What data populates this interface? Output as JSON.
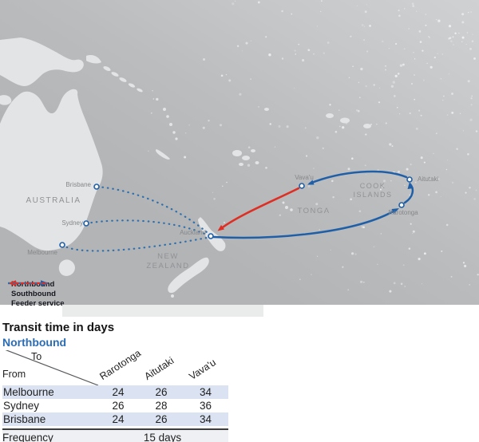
{
  "colors": {
    "northbound_blue": "#1f5fa8",
    "southbound_red": "#df2e23",
    "feeder_blue": "#2f6fad",
    "row_highlight": "#dbe3f2",
    "frequency_bg": "#eef0f3",
    "heading_blue": "#2b6cb3",
    "ocean_gray": "#b4b6b8",
    "land_gray": "#e3e4e5"
  },
  "map": {
    "countries": {
      "australia": "AUSTRALIA",
      "new_zealand_line1": "NEW",
      "new_zealand_line2": "ZEALAND",
      "cook_islands_line1": "COOK",
      "cook_islands_line2": "ISLANDS",
      "tonga": "TONGA"
    },
    "cities": {
      "brisbane": "Brisbane",
      "sydney": "Sydney",
      "melbourne": "Melbourne",
      "auckland": "Auckland",
      "vavau": "Vava'u",
      "aitutaki": "Aitutaki",
      "rarotonga": "Rarotonga"
    },
    "legend": {
      "northbound": "Northbound",
      "southbound": "Southbound",
      "feeder": "Feeder service"
    }
  },
  "transit": {
    "title": "Transit time in days",
    "direction": "Northbound",
    "axis": {
      "to": "To",
      "from": "From"
    },
    "columns": [
      "Rarotonga",
      "Aitutaki",
      "Vava'u"
    ],
    "rows": [
      {
        "from": "Melbourne",
        "values": [
          "24",
          "26",
          "34"
        ]
      },
      {
        "from": "Sydney",
        "values": [
          "26",
          "28",
          "36"
        ]
      },
      {
        "from": "Brisbane",
        "values": [
          "24",
          "26",
          "34"
        ]
      }
    ],
    "frequency": {
      "label": "Frequency",
      "value": "15 days"
    }
  }
}
